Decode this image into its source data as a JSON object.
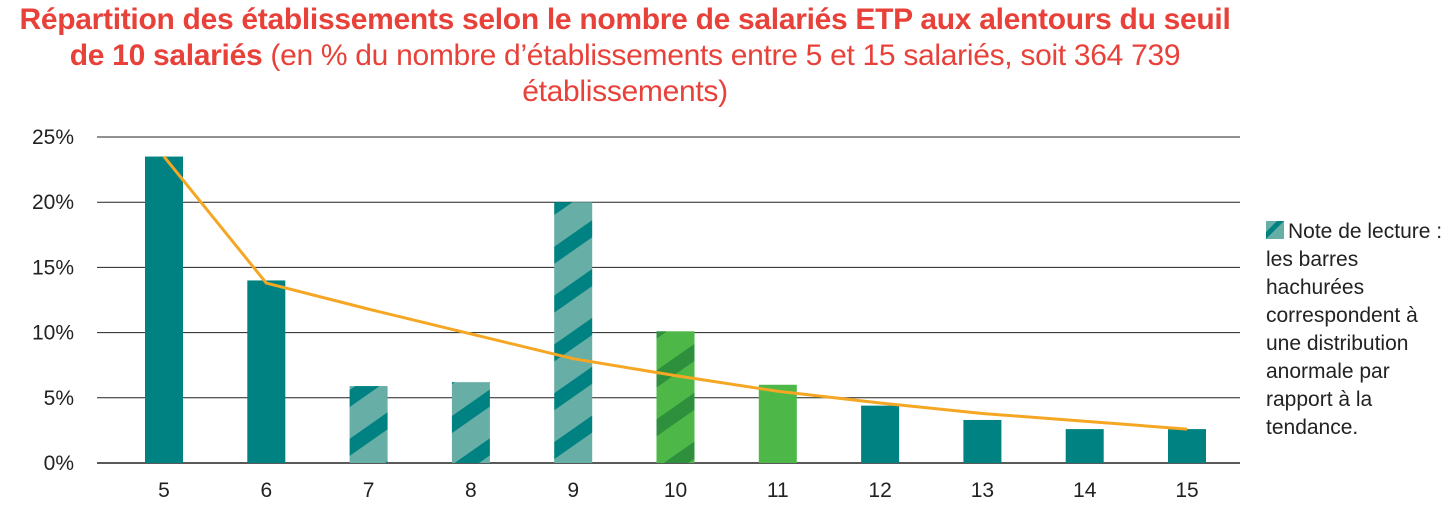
{
  "title": {
    "bold": "Répartition des établissements selon le nombre de salariés ETP aux alentours du seuil de 10 salariés",
    "normal": " (en % du nombre d’établissements entre 5 et 15 salariés, soit 364 739 établissements)"
  },
  "legend": {
    "text": "Note de lecture : les barres hachurées correspondent à une distribution anormale par rapport à la tendance."
  },
  "colors": {
    "title": "#e8413a",
    "teal": "#008282",
    "teal_light": "#66aea6",
    "green": "#4db848",
    "green_dark": "#2e8f3c",
    "trend": "#f5a623",
    "grid": "#222222"
  },
  "chart_data": {
    "type": "bar",
    "categories": [
      "5",
      "6",
      "7",
      "8",
      "9",
      "10",
      "11",
      "12",
      "13",
      "14",
      "15"
    ],
    "values": [
      23.5,
      14.0,
      5.9,
      6.2,
      20.0,
      10.1,
      6.0,
      4.4,
      3.3,
      2.6,
      2.6
    ],
    "hatched": [
      false,
      false,
      true,
      true,
      true,
      true,
      false,
      false,
      false,
      false,
      false
    ],
    "fills": [
      "teal",
      "teal",
      "teal_light",
      "teal_light",
      "teal_light",
      "green",
      "green",
      "teal",
      "teal",
      "teal",
      "teal"
    ],
    "trend": [
      23.5,
      13.8,
      11.8,
      9.9,
      8.0,
      6.7,
      5.5,
      4.6,
      3.8,
      3.2,
      2.6
    ],
    "ylim": [
      0,
      25
    ],
    "yticks": [
      0,
      5,
      10,
      15,
      20,
      25
    ],
    "ytick_labels": [
      "0%",
      "5%",
      "10%",
      "15%",
      "20%",
      "25%"
    ],
    "grid": true,
    "legend_position": "right"
  }
}
